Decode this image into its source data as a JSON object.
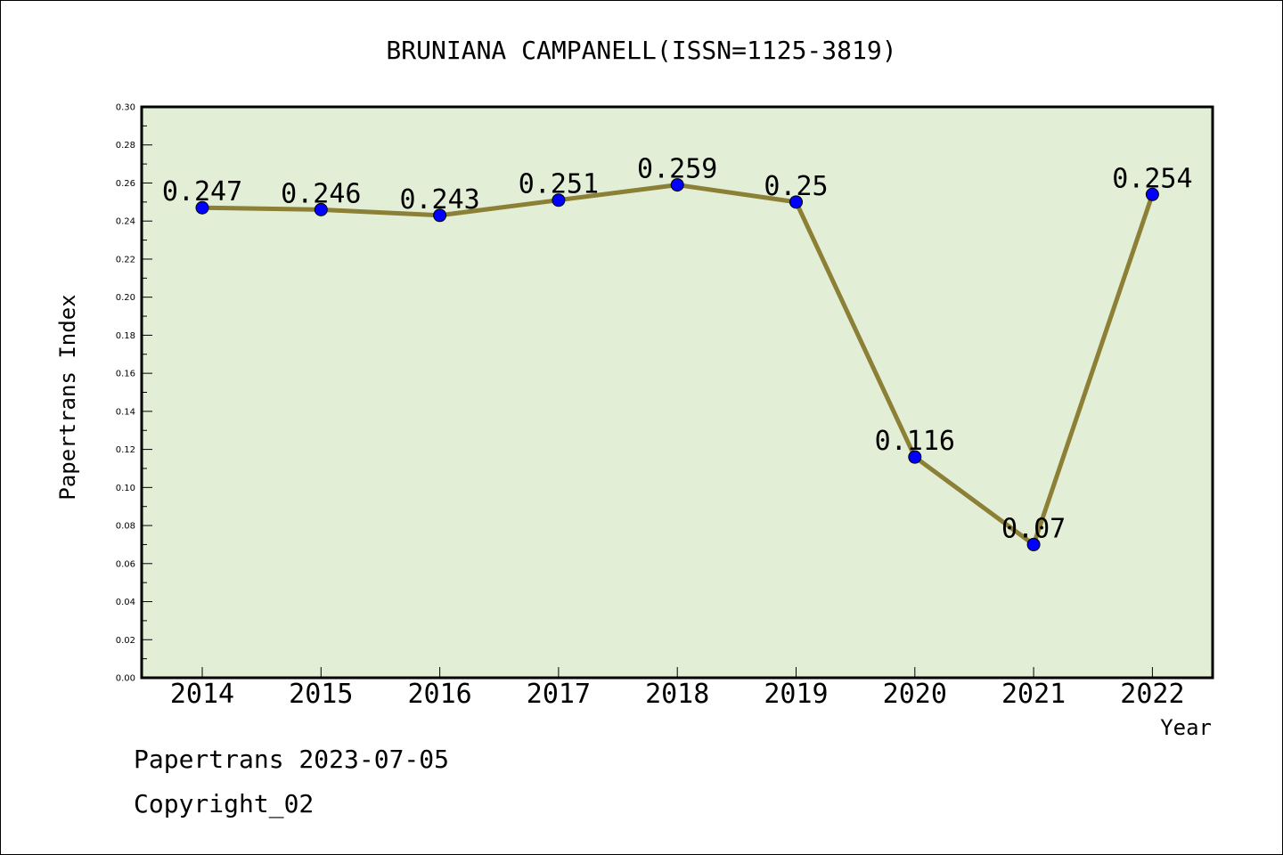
{
  "chart_data": {
    "type": "line",
    "title": "BRUNIANA CAMPANELL(ISSN=1125-3819)",
    "xlabel": "Year",
    "ylabel": "Papertrans Index",
    "categories": [
      "2014",
      "2015",
      "2016",
      "2017",
      "2018",
      "2019",
      "2020",
      "2021",
      "2022"
    ],
    "values": [
      0.247,
      0.246,
      0.243,
      0.251,
      0.259,
      0.25,
      0.116,
      0.07,
      0.254
    ],
    "data_labels": [
      "0.247",
      "0.246",
      "0.243",
      "0.251",
      "0.259",
      "0.25",
      "0.116",
      "0.07",
      "0.254"
    ],
    "ylim": [
      0,
      0.3
    ],
    "yticks": [
      "0.00",
      "0.02",
      "0.04",
      "0.06",
      "0.08",
      "0.10",
      "0.12",
      "0.14",
      "0.16",
      "0.18",
      "0.20",
      "0.22",
      "0.24",
      "0.26",
      "0.28",
      "0.30"
    ],
    "grid": false,
    "colors": {
      "plot_background": "#e2efd6",
      "line": "#8c7f36",
      "marker": "#0000ff"
    }
  },
  "footer": {
    "line1": "Papertrans 2023-07-05",
    "line2": "Copyright_02"
  }
}
